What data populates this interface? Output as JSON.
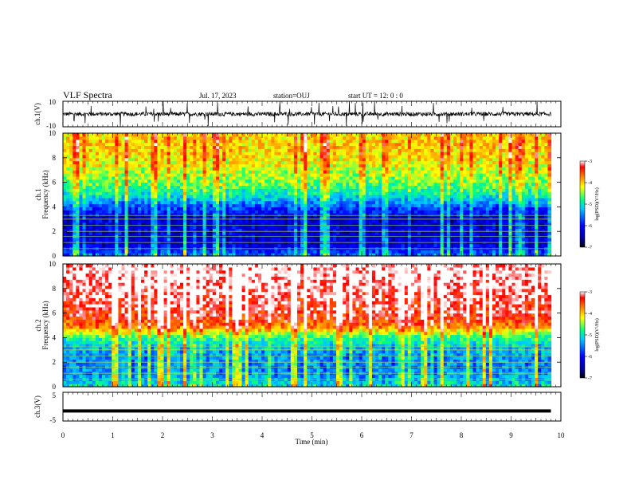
{
  "header": {
    "title": "VLF Spectra",
    "date": "Jul. 17, 2023",
    "station": "station=OUJ",
    "start_ut": "start UT =  12: 0 : 0"
  },
  "colors": {
    "scale": [
      "#0000a0",
      "#0000ff",
      "#00c8ff",
      "#00ff80",
      "#ffff00",
      "#ff8000",
      "#ff0000",
      "#ffffff"
    ]
  },
  "chart_data": [
    {
      "type": "line",
      "panel": "ch1-waveform",
      "ylabel": "ch.1(V)",
      "ylim": [
        -10,
        10
      ],
      "yticks": [
        "10",
        "-10"
      ],
      "xlim": [
        0,
        10
      ],
      "series": [
        {
          "description": "broadband noise centered near 0 V, amplitude about ±2 V with spikes",
          "mean": 0,
          "noise_amplitude": 2
        }
      ]
    },
    {
      "type": "heatmap",
      "panel": "ch1-spectrogram",
      "ylabel": "ch.1\nFrequency (kHz)",
      "ylim": [
        0,
        10
      ],
      "yticks": [
        "0",
        "2",
        "4",
        "6",
        "8",
        "10"
      ],
      "xlim": [
        0,
        9.8
      ],
      "colorbar": {
        "label": "log(PSD)(V²/Hz)",
        "range": [
          -7,
          -3
        ],
        "ticks": [
          "-7",
          "-6",
          "-5",
          "-4",
          "-3"
        ]
      },
      "profile_khz": [
        0,
        1,
        2,
        3,
        4,
        5,
        6,
        7,
        8,
        9,
        10
      ],
      "profile_log_psd": [
        -5.5,
        -6.3,
        -6.2,
        -6.3,
        -5.7,
        -5.0,
        -4.6,
        -4.3,
        -4.1,
        -4.0,
        -4.0
      ]
    },
    {
      "type": "heatmap",
      "panel": "ch2-spectrogram",
      "ylabel": "ch.2\nFrequency (kHz)",
      "ylim": [
        0,
        10
      ],
      "yticks": [
        "0",
        "2",
        "4",
        "6",
        "8",
        "10"
      ],
      "xlim": [
        0,
        9.8
      ],
      "colorbar": {
        "label": "log(PSD)(V²/Hz)",
        "range": [
          -7,
          -3
        ],
        "ticks": [
          "-7",
          "-6",
          "-5",
          "-4",
          "-3"
        ]
      },
      "profile_khz": [
        0,
        1,
        2,
        3,
        4,
        5,
        6,
        7,
        8,
        9,
        10
      ],
      "profile_log_psd": [
        -5.0,
        -5.4,
        -5.5,
        -5.3,
        -4.8,
        -3.6,
        -3.3,
        -3.2,
        -3.1,
        -3.0,
        -3.0
      ]
    },
    {
      "type": "line",
      "panel": "ch3-waveform",
      "ylabel": "ch.3(V)",
      "ylim": [
        -5,
        5
      ],
      "yticks": [
        "5",
        "-5"
      ],
      "xlim": [
        0,
        10
      ],
      "series": [
        {
          "description": "constant level",
          "mean": -1.5,
          "noise_amplitude": 0
        }
      ]
    }
  ],
  "x_axis": {
    "label": "Time (min)",
    "ticks": [
      "0",
      "1",
      "2",
      "3",
      "4",
      "5",
      "6",
      "7",
      "8",
      "9",
      "10"
    ],
    "range": [
      0,
      10
    ]
  }
}
